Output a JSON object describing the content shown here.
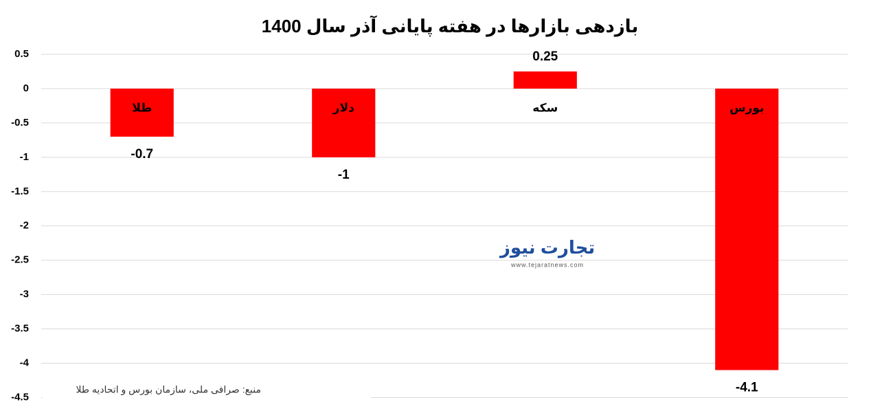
{
  "chart_data": {
    "type": "bar",
    "title": "بازدهی بازارها در هفته پایانی آذر سال 1400",
    "categories": [
      "طلا",
      "دلار",
      "سکه",
      "بورس"
    ],
    "values": [
      -0.7,
      -1,
      0.25,
      -4.1
    ],
    "color": "#ff0000",
    "ylim": [
      -4.5,
      0.5
    ],
    "yticks": [
      0.5,
      0,
      -0.5,
      -1,
      -1.5,
      -2,
      -2.5,
      -3,
      -3.5,
      -4,
      -4.5
    ],
    "grid": true,
    "source": "منبع: صرافی ملی، سازمان بورس و اتحادیه طلا",
    "watermark": {
      "name": "تجارت نیوز",
      "url": "www.tejaratnews.com"
    }
  }
}
